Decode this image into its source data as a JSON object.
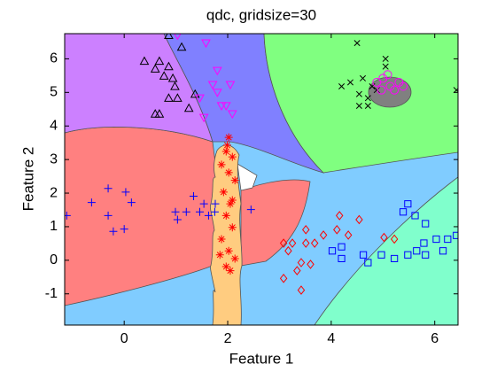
{
  "chart_data": {
    "type": "scatter",
    "title": "qdc, gridsize=30",
    "xlabel": "Feature 1",
    "ylabel": "Feature 2",
    "xlim": [
      -1.15,
      6.45
    ],
    "ylim": [
      -1.93,
      6.75
    ],
    "xticks": [
      0,
      2,
      4,
      6
    ],
    "yticks": [
      -1,
      0,
      1,
      2,
      3,
      4,
      5,
      6
    ],
    "series": [
      {
        "color": "#000000",
        "marker": "^",
        "x": [
          0.86,
          1.11,
          0.39,
          0.68,
          0.86,
          0.77,
          0.94,
          0.98,
          0.86,
          1.03,
          0.68,
          0.6,
          1.37,
          1.25,
          0.6
        ],
        "y": [
          6.7,
          6.35,
          5.93,
          5.93,
          5.77,
          5.49,
          5.42,
          5.18,
          4.83,
          4.83,
          4.36,
          4.36,
          4.95,
          4.53,
          5.7
        ]
      },
      {
        "color": "#ff00ff",
        "marker": "v",
        "x": [
          1.03,
          1.58,
          1.8,
          1.71,
          2.05,
          1.46,
          1.88,
          1.97,
          2.09,
          1.54,
          1.8
        ],
        "y": [
          6.7,
          6.47,
          5.65,
          5.23,
          5.23,
          4.83,
          4.6,
          4.6,
          4.36,
          4.25,
          5.0
        ]
      },
      {
        "color": "#000000",
        "marker": "x",
        "x": [
          4.5,
          5.05,
          5.05,
          4.61,
          4.37,
          4.2,
          4.54,
          4.71,
          4.54,
          4.71,
          4.88,
          4.79,
          6.42
        ],
        "y": [
          6.47,
          6.0,
          5.77,
          5.42,
          5.3,
          5.18,
          4.95,
          4.83,
          4.6,
          4.6,
          5.07,
          5.18,
          5.07
        ]
      },
      {
        "color": "#ff00ff",
        "marker": "o",
        "x": [
          4.88,
          5.0,
          5.14,
          5.31,
          5.22,
          4.97,
          5.39,
          5.09
        ],
        "y": [
          5.3,
          5.42,
          5.18,
          5.3,
          5.07,
          5.07,
          5.18,
          5.53
        ]
      },
      {
        "color": "#ff0000",
        "marker": "*",
        "x": [
          2.02,
          1.97,
          2.09,
          1.88,
          2.02,
          2.14,
          1.92,
          2.05,
          1.97,
          2.09,
          1.88,
          2.02,
          2.14,
          1.97,
          2.05,
          1.85,
          1.99,
          2.09
        ],
        "y": [
          3.66,
          3.24,
          3.08,
          2.85,
          2.61,
          2.38,
          2.03,
          1.68,
          1.33,
          0.98,
          0.63,
          0.28,
          0.05,
          -0.19,
          -0.31,
          0.16,
          3.43,
          1.79
        ]
      },
      {
        "color": "#0000ff",
        "marker": "+",
        "x": [
          -1.11,
          -0.63,
          -0.31,
          0.03,
          0.14,
          -0.31,
          -0.21,
          0.0,
          0.99,
          1.2,
          1.34,
          1.46,
          1.63,
          1.75,
          1.76,
          2.45,
          1.54,
          1.03
        ],
        "y": [
          1.33,
          1.72,
          2.14,
          2.03,
          1.72,
          1.33,
          0.86,
          0.93,
          1.44,
          1.44,
          1.91,
          1.44,
          1.33,
          1.44,
          1.68,
          1.51,
          1.68,
          1.21
        ]
      },
      {
        "color": "#ff0000",
        "marker": "d",
        "x": [
          4.16,
          4.54,
          4.11,
          3.85,
          3.51,
          3.25,
          3.51,
          3.68,
          3.17,
          3.42,
          3.34,
          3.08,
          3.6,
          4.33,
          5.02,
          5.22,
          3.42,
          3.08
        ],
        "y": [
          1.33,
          1.21,
          0.91,
          0.75,
          0.91,
          0.51,
          0.51,
          0.51,
          0.28,
          -0.07,
          -0.31,
          -0.54,
          -0.12,
          0.75,
          0.68,
          0.63,
          -0.89,
          0.51
        ]
      },
      {
        "color": "#0000ff",
        "marker": "s",
        "x": [
          5.48,
          5.39,
          5.62,
          5.82,
          6.25,
          6.03,
          5.79,
          5.65,
          5.48,
          5.22,
          4.97,
          4.71,
          4.62,
          4.2,
          4.02,
          4.2,
          6.42,
          6.16,
          5.82
        ],
        "y": [
          1.68,
          1.44,
          1.33,
          1.09,
          0.63,
          0.63,
          0.51,
          0.28,
          0.16,
          0.05,
          0.16,
          -0.07,
          0.16,
          0.05,
          0.28,
          0.4,
          0.74,
          0.28,
          0.16
        ]
      }
    ]
  }
}
